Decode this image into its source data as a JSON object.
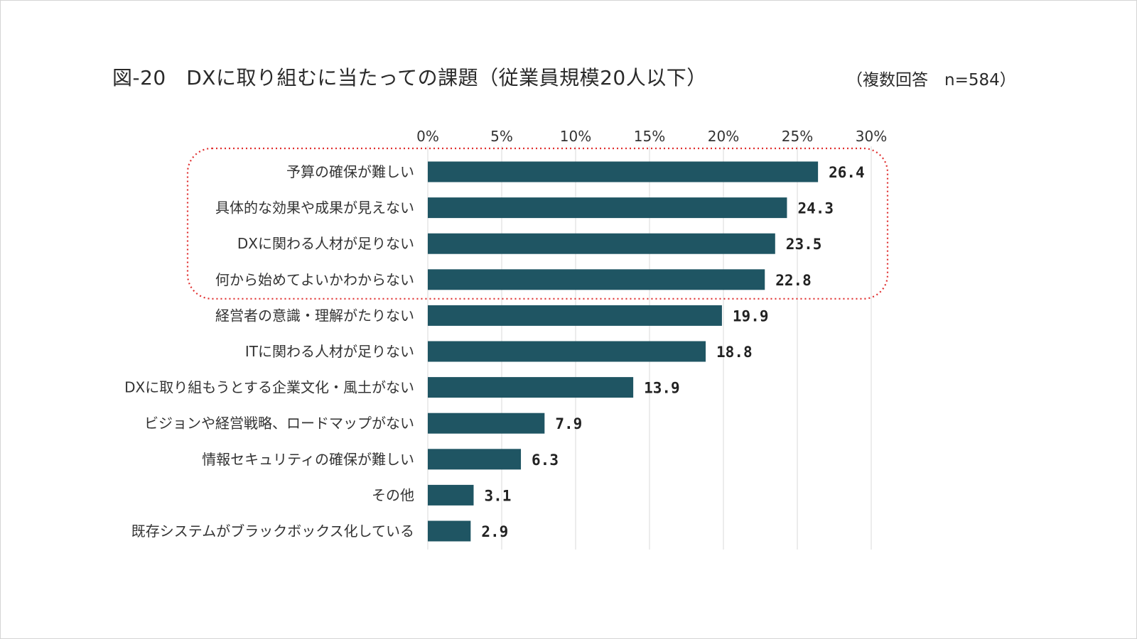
{
  "header": {
    "title": "図-20　DXに取り組むに当たっての課題（従業員規模20人以下）",
    "note": "（複数回答　n=584）"
  },
  "colors": {
    "bar": "#1f5563",
    "grid": "#d9d9d9",
    "highlight": "#e03030"
  },
  "chart_data": {
    "type": "bar",
    "orientation": "horizontal",
    "title": "図-20　DXに取り組むに当たっての課題（従業員規模20人以下）",
    "axis_position": "top",
    "xlim": [
      0,
      30
    ],
    "xticks": [
      "0%",
      "5%",
      "10%",
      "15%",
      "20%",
      "25%",
      "30%"
    ],
    "grid": true,
    "categories": [
      "予算の確保が難しい",
      "具体的な効果や成果が見えない",
      "DXに関わる人材が足りない",
      "何から始めてよいかわからない",
      "経営者の意識・理解がたりない",
      "ITに関わる人材が足りない",
      "DXに取り組もうとする企業文化・風土がない",
      "ビジョンや経営戦略、ロードマップがない",
      "情報セキュリティの確保が難しい",
      "その他",
      "既存システムがブラックボックス化している"
    ],
    "values": [
      26.4,
      24.3,
      23.5,
      22.8,
      19.9,
      18.8,
      13.9,
      7.9,
      6.3,
      3.1,
      2.9
    ],
    "value_labels": [
      "26.4",
      "24.3",
      "23.5",
      "22.8",
      "19.9",
      "18.8",
      "13.9",
      "7.9",
      "6.3",
      "3.1",
      "2.9"
    ],
    "highlight": "top 4 categories enclosed by red dotted rounded box"
  }
}
